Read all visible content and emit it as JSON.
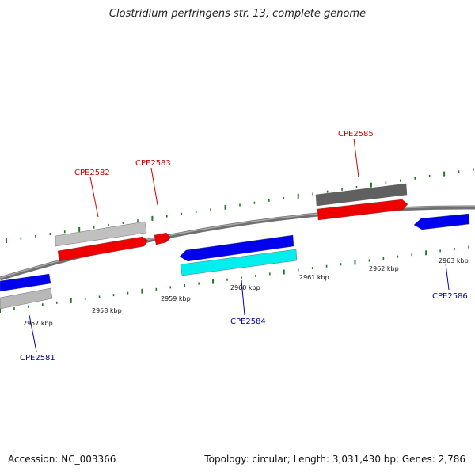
{
  "title": "Clostridium perfringens str. 13, complete genome",
  "footer": {
    "accession": "Accession: NC_003366",
    "summary": "Topology: circular; Length: 3,031,430 bp; Genes: 2,786"
  },
  "colors": {
    "backbone": "#8a8a8a",
    "tick": "#1f7a1f",
    "forward_label": "#cc0000",
    "reverse_label": "#0000aa"
  },
  "scale_labels": [
    "2957 kbp",
    "2958 kbp",
    "2959 kbp",
    "2960 kbp",
    "2961 kbp",
    "2962 kbp",
    "2963 kbp"
  ],
  "gene_labels": [
    {
      "name": "CPE2581",
      "strand": "reverse"
    },
    {
      "name": "CPE2582",
      "strand": "forward"
    },
    {
      "name": "CPE2583",
      "strand": "forward"
    },
    {
      "name": "CPE2584",
      "strand": "reverse"
    },
    {
      "name": "CPE2585",
      "strand": "forward"
    },
    {
      "name": "CPE2586",
      "strand": "reverse"
    }
  ],
  "features": [
    {
      "name": "cds-2581",
      "color": "#0000ee"
    },
    {
      "name": "orf-2581",
      "color": "#b8b8b8"
    },
    {
      "name": "orf-2582",
      "color": "#c0c0c0"
    },
    {
      "name": "cds-2582",
      "color": "#ee0000"
    },
    {
      "name": "cds-2583",
      "color": "#ee0000"
    },
    {
      "name": "cds-2584",
      "color": "#0000ee"
    },
    {
      "name": "orf-2584",
      "color": "#00eeee"
    },
    {
      "name": "orf-2585",
      "color": "#606060"
    },
    {
      "name": "cds-2585",
      "color": "#ee0000"
    },
    {
      "name": "cds-2586",
      "color": "#0000ee"
    }
  ]
}
